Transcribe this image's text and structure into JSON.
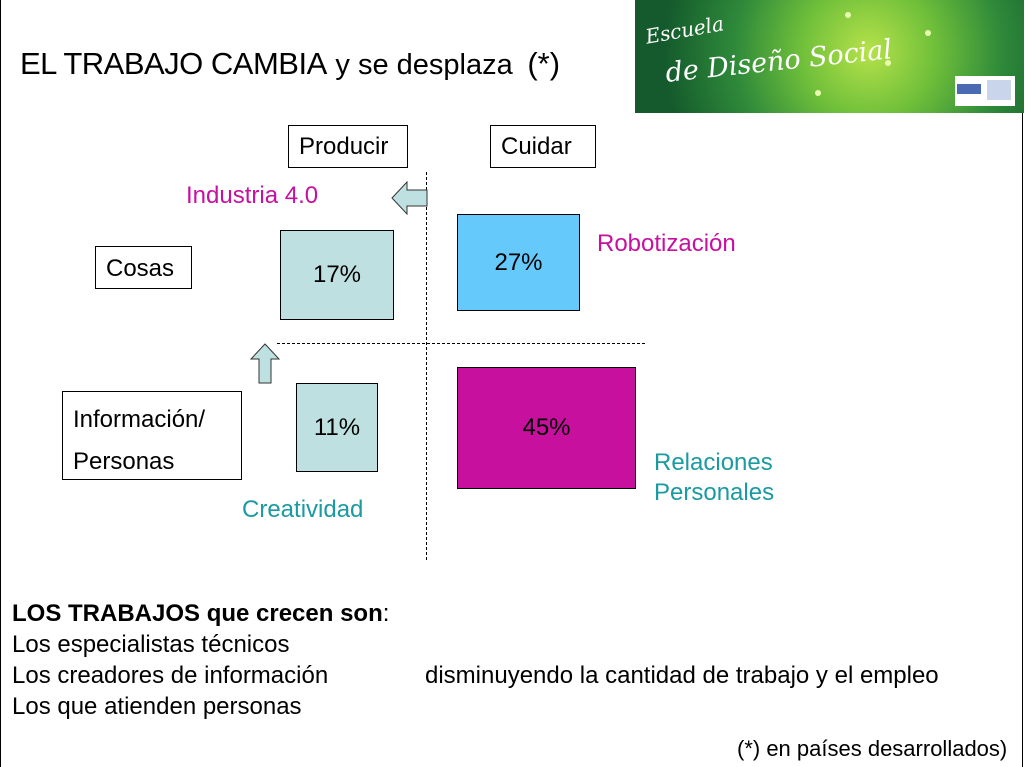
{
  "title": {
    "main": "EL TRABAJO CAMBIA",
    "rest": "y se desplaza",
    "mark": "(*)"
  },
  "logo": {
    "line1": "Escuela",
    "line2": "de Diseño Social"
  },
  "columns": {
    "left": "Producir",
    "right": "Cuidar"
  },
  "rows": {
    "top": "Cosas",
    "bottom_line1": "Información/",
    "bottom_line2": "Personas"
  },
  "cells": {
    "top_left": {
      "value": "17%",
      "color": "#bfe0e1"
    },
    "top_right": {
      "value": "27%",
      "color": "#66c9fc"
    },
    "bottom_left": {
      "value": "11%",
      "color": "#bfe0e1"
    },
    "bottom_right": {
      "value": "45%",
      "color": "#c8109f"
    }
  },
  "labels": {
    "industria": "Industria 4.0",
    "robotizacion": "Robotización",
    "creatividad": "Creatividad",
    "relaciones_line1": "Relaciones",
    "relaciones_line2": "Personales"
  },
  "colors": {
    "magenta": "#c8109f",
    "teal": "#1b9aa1",
    "arrow": "#bfe0e1"
  },
  "bottom": {
    "heading_bold1": "LOS TRABAJOS",
    "heading_bold2": "que crecen son",
    "heading_colon": ":",
    "items": [
      "Los especialistas técnicos",
      "Los creadores de información",
      "Los que atienden personas"
    ],
    "side_text": "disminuyendo la cantidad de trabajo y el empleo"
  },
  "footnote": "(*) en países desarrollados)"
}
